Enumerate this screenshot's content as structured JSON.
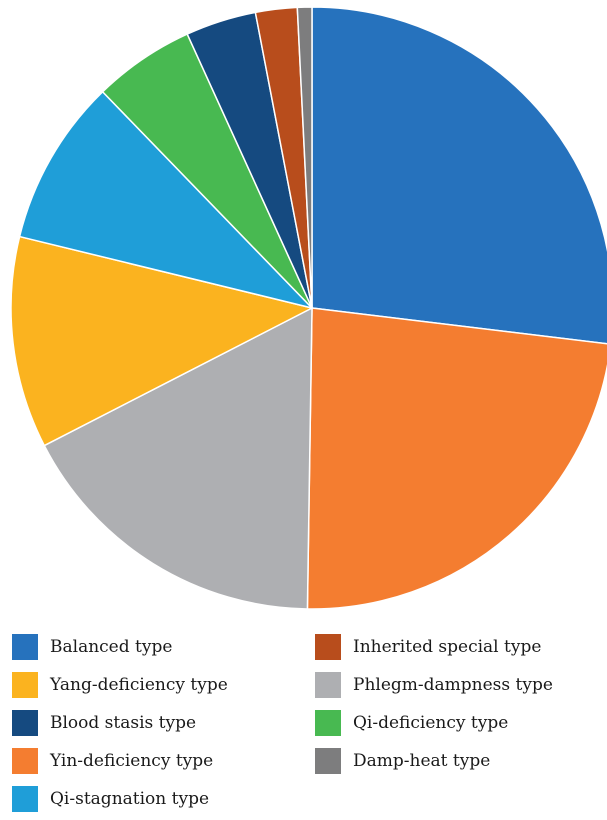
{
  "chart_data": {
    "type": "pie",
    "title": "",
    "slices": [
      {
        "label": "Balanced type",
        "value": 27.7,
        "color": "#2672bd"
      },
      {
        "label": "Yin-deficiency type",
        "value": 24.0,
        "color": "#f47d30"
      },
      {
        "label": "Phlegm-dampness type",
        "value": 17.7,
        "color": "#aeafb2"
      },
      {
        "label": "Yang-deficiency type",
        "value": 11.7,
        "color": "#fbb31f"
      },
      {
        "label": "Qi-stagnation type",
        "value": 9.2,
        "color": "#1f9ed8"
      },
      {
        "label": "Qi-deficiency type",
        "value": 5.6,
        "color": "#48b951"
      },
      {
        "label": "Blood stasis type",
        "value": 3.9,
        "color": "#154a80"
      },
      {
        "label": "Inherited special type",
        "value": 2.3,
        "color": "#b84d1c"
      },
      {
        "label": "Damp-heat type",
        "value": 0.8,
        "color": "#7d7d7e"
      }
    ],
    "legend": {
      "placement": "bottom",
      "order": [
        "Balanced type",
        "Inherited special type",
        "Yang-deficiency type",
        "Phlegm-dampness type",
        "Blood stasis type",
        "Qi-deficiency type",
        "Yin-deficiency type",
        "Damp-heat type",
        "Qi-stagnation type"
      ]
    }
  }
}
